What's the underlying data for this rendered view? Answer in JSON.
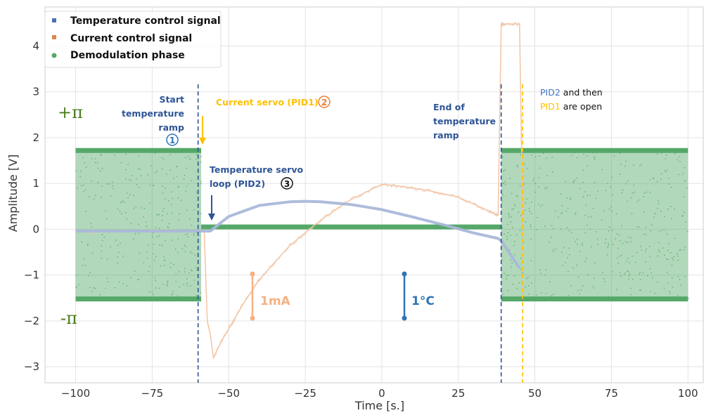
{
  "chart_data": {
    "type": "scatter",
    "xlabel": "Time [s.]",
    "ylabel": "Amplitude [V]",
    "xlim": [
      -110,
      105
    ],
    "ylim": [
      -3.35,
      4.85
    ],
    "xticks": [
      -100,
      -75,
      -50,
      -25,
      0,
      25,
      50,
      75,
      100
    ],
    "yticks": [
      -3,
      -2,
      -1,
      0,
      1,
      2,
      3,
      4
    ],
    "grid": true,
    "legend_position": "top-left",
    "legend": [
      {
        "label": "Temperature control signal",
        "color": "#4c72b0"
      },
      {
        "label": "Current control signal",
        "color": "#dd8452"
      },
      {
        "label": "Demodulation phase",
        "color": "#55a868"
      }
    ],
    "series": [
      {
        "name": "Temperature control signal",
        "color": "#a9b8d9",
        "x": [
          -100,
          -56,
          -50,
          -40,
          -30,
          -25,
          -20,
          -10,
          0,
          10,
          20,
          30,
          38,
          39,
          45
        ],
        "y": [
          -0.04,
          -0.04,
          0.28,
          0.52,
          0.6,
          0.61,
          0.6,
          0.54,
          0.43,
          0.27,
          0.1,
          -0.08,
          -0.2,
          -0.25,
          -0.85
        ]
      },
      {
        "name": "Current control signal",
        "color": "#f2c4a4",
        "x": [
          -100,
          -58,
          -57,
          -56,
          -55,
          -52,
          -45,
          -40,
          -30,
          -20,
          -10,
          0,
          5,
          15,
          25,
          35,
          38,
          39,
          40,
          45,
          46
        ],
        "y": [
          -0.05,
          -0.05,
          -2.0,
          -2.3,
          -2.8,
          -2.4,
          -1.6,
          -1.1,
          -0.35,
          0.2,
          0.65,
          0.98,
          0.95,
          0.85,
          0.7,
          0.4,
          0.3,
          4.48,
          4.48,
          4.48,
          0.2
        ]
      },
      {
        "name": "Demodulation phase",
        "color": "#55a868",
        "segments": [
          {
            "x": [
              -100,
              -59
            ],
            "y_upper": 1.72,
            "y_lower": -1.52
          },
          {
            "x": [
              -59,
              39
            ],
            "y": 0.05
          },
          {
            "x": [
              39,
              100
            ],
            "y_upper": 1.72,
            "y_lower": -1.52
          }
        ]
      }
    ],
    "vlines": [
      {
        "x": -60,
        "color": "#2f5597"
      },
      {
        "x": 39,
        "color": "#2f5597"
      },
      {
        "x": 46,
        "color": "#ffc000"
      }
    ],
    "annotations": {
      "plus_pi": "+π",
      "minus_pi": "-π",
      "start_ramp": [
        "Start",
        "temperature",
        "ramp"
      ],
      "current_servo": "Current servo (PID1)",
      "temp_servo": [
        "Temperature servo",
        "loop (PID2)"
      ],
      "end_ramp": [
        "End of",
        "temperature",
        "ramp"
      ],
      "pid_open_1a": "PID2",
      "pid_open_1b": " and then",
      "pid_open_2a": "PID1",
      "pid_open_2b": " are open",
      "scale_current": "1mA",
      "scale_temp": "1°C",
      "circle_1": "1",
      "circle_2": "2",
      "circle_3": "3"
    }
  }
}
